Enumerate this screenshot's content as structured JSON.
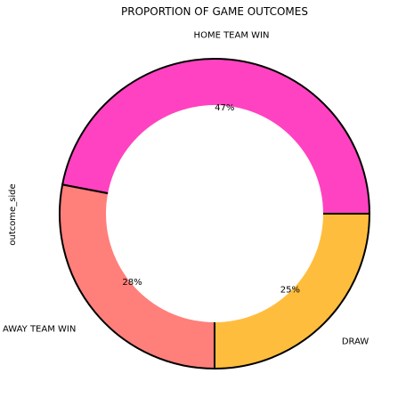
{
  "chart_data": {
    "type": "pie",
    "title": "PROPORTION OF GAME OUTCOMES",
    "ylabel": "outcome_side",
    "style": "donut",
    "start_angle_deg": 0,
    "direction": "counterclockwise",
    "slices": [
      {
        "label": "HOME TEAM WIN",
        "value": 47,
        "pct_label": "47%",
        "color": "#ff42c1"
      },
      {
        "label": "AWAY TEAM WIN",
        "value": 28,
        "pct_label": "28%",
        "color": "#ff7f7a"
      },
      {
        "label": "DRAW",
        "value": 25,
        "pct_label": "25%",
        "color": "#ffbd3e"
      }
    ],
    "edge_color": "#000000"
  }
}
